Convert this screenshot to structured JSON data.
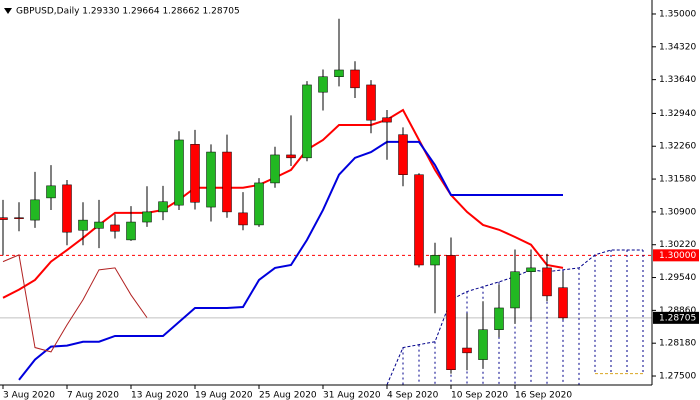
{
  "chart_data": {
    "type": "candlestick",
    "title": "GBPUSD,Daily  1.29330 1.29664 1.28662 1.28705",
    "categories": [
      "3 Aug 2020",
      null,
      null,
      null,
      "7 Aug 2020",
      null,
      null,
      null,
      "13 Aug 2020",
      null,
      null,
      null,
      "19 Aug 2020",
      null,
      null,
      null,
      "25 Aug 2020",
      null,
      null,
      null,
      "31 Aug 2020",
      null,
      null,
      null,
      "4 Sep 2020",
      null,
      null,
      null,
      "10 Sep 2020",
      null,
      null,
      null,
      "16 Sep 2020",
      null,
      null,
      null,
      null,
      null,
      null,
      null,
      null
    ],
    "candles": {
      "up_color": "#22b822",
      "down_color": "#ff0000",
      "open": [
        1.3078,
        1.3078,
        1.3073,
        1.3119,
        1.3146,
        1.3052,
        1.3056,
        1.3063,
        1.3032,
        1.3069,
        1.309,
        1.3104,
        1.323,
        1.31,
        1.3214,
        1.3088,
        1.3063,
        1.315,
        1.3208,
        1.3202,
        1.3338,
        1.337,
        1.3384,
        1.3353,
        1.3285,
        1.325,
        1.3167,
        1.298,
        1.3,
        1.2808,
        1.2784,
        1.2846,
        1.2891,
        1.2966,
        1.2974,
        1.2933
      ],
      "high": [
        1.3115,
        1.311,
        1.3173,
        1.3187,
        1.3156,
        1.311,
        1.3115,
        1.3085,
        1.3102,
        1.3143,
        1.3144,
        1.3257,
        1.326,
        1.323,
        1.325,
        1.3131,
        1.316,
        1.3225,
        1.329,
        1.3361,
        1.3385,
        1.349,
        1.3402,
        1.3363,
        1.3301,
        1.3265,
        1.317,
        1.3026,
        1.3037,
        1.288,
        1.2905,
        1.294,
        1.3012,
        1.3012,
        1.3003,
        1.29664
      ],
      "low": [
        1.3,
        1.305,
        1.3057,
        1.3094,
        1.3021,
        1.3021,
        1.3015,
        1.3035,
        1.303,
        1.3059,
        1.3073,
        1.3094,
        1.3095,
        1.307,
        1.3078,
        1.3052,
        1.3059,
        1.314,
        1.3185,
        1.3195,
        1.33,
        1.335,
        1.3326,
        1.3253,
        1.3198,
        1.3143,
        1.2975,
        1.288,
        1.2755,
        1.2762,
        1.2765,
        1.283,
        1.2858,
        1.2866,
        1.2905,
        1.28662
      ],
      "close": [
        1.3074,
        1.3076,
        1.3115,
        1.3144,
        1.3048,
        1.3073,
        1.3069,
        1.305,
        1.3069,
        1.309,
        1.3111,
        1.3239,
        1.311,
        1.3214,
        1.309,
        1.3063,
        1.315,
        1.3208,
        1.3202,
        1.3353,
        1.337,
        1.3384,
        1.3347,
        1.328,
        1.3276,
        1.3167,
        1.298,
        1.3,
        1.2763,
        1.2798,
        1.2846,
        1.2891,
        1.2966,
        1.2974,
        1.2916,
        1.28705
      ]
    },
    "series": [
      {
        "color": "#ff0000",
        "width": 2,
        "dash": false,
        "values": [
          1.2912,
          1.2929,
          1.2949,
          1.2987,
          1.3011,
          1.3036,
          1.3063,
          1.3088,
          1.3088,
          1.3088,
          1.3094,
          1.3115,
          1.314,
          1.314,
          1.314,
          1.314,
          1.3146,
          1.3161,
          1.3177,
          1.3219,
          1.3239,
          1.327,
          1.327,
          1.327,
          1.3281,
          1.3301,
          1.3239,
          1.3177,
          1.3125,
          1.309,
          1.3063,
          1.3053,
          1.3038,
          1.3022,
          1.298,
          1.2974,
          null,
          null,
          null,
          null,
          null
        ]
      },
      {
        "color": "#0000dd",
        "width": 2,
        "dash": false,
        "values": [
          null,
          1.2742,
          1.2784,
          1.2811,
          1.2813,
          1.2821,
          1.2821,
          1.2833,
          1.2833,
          1.2833,
          1.2833,
          1.2862,
          1.2891,
          1.2891,
          1.2891,
          1.2893,
          1.2949,
          1.2974,
          1.298,
          1.3032,
          1.3094,
          1.3167,
          1.3202,
          1.3214,
          1.3235,
          1.3235,
          1.3235,
          1.3187,
          1.3125,
          1.3125,
          1.3125,
          1.3125,
          1.3125,
          1.3125,
          1.3125,
          1.3125,
          null,
          null,
          null,
          null,
          null
        ]
      },
      {
        "color": "#b22222",
        "width": 1,
        "dash": false,
        "values": [
          1.2987,
          1.3001,
          1.2809,
          1.28,
          1.2856,
          1.2908,
          1.297,
          1.2974,
          1.2918,
          1.2871,
          null,
          null,
          null,
          null,
          null,
          null,
          null,
          null,
          null,
          null,
          null,
          null,
          null,
          null,
          null,
          null,
          null,
          null,
          null,
          null,
          null,
          null,
          null,
          null,
          null,
          null,
          null,
          null,
          null,
          null,
          null
        ]
      },
      {
        "color": "#00008b",
        "width": 1,
        "dash": true,
        "values": [
          null,
          null,
          null,
          null,
          null,
          null,
          null,
          null,
          null,
          null,
          null,
          null,
          null,
          null,
          null,
          null,
          null,
          null,
          null,
          null,
          null,
          null,
          null,
          null,
          1.2732,
          1.2809,
          1.2815,
          1.2821,
          1.2908,
          1.2925,
          1.2935,
          1.2945,
          1.2956,
          1.297,
          1.2966,
          1.297,
          1.2974,
          1.3001,
          1.3011,
          1.3011,
          1.3011
        ]
      },
      {
        "color": "#daa520",
        "width": 1,
        "dash": true,
        "values": [
          null,
          null,
          null,
          null,
          null,
          null,
          null,
          null,
          null,
          null,
          null,
          null,
          null,
          null,
          null,
          null,
          null,
          null,
          null,
          null,
          null,
          null,
          null,
          null,
          null,
          null,
          null,
          null,
          null,
          null,
          null,
          null,
          null,
          null,
          null,
          null,
          null,
          1.2755,
          1.2755,
          1.2755,
          1.2755
        ]
      }
    ],
    "levels": [
      {
        "value": 1.3,
        "label": "1.30000",
        "color": "#ff0000",
        "dash": true
      },
      {
        "value": 1.28705,
        "label": "1.28705",
        "color": "#000000",
        "dash": false
      }
    ],
    "ylim": [
      1.27314,
      1.35186
    ],
    "yticks": [
      {
        "value": 1.35,
        "label": "1.35000"
      },
      {
        "value": 1.3432,
        "label": "1.34320"
      },
      {
        "value": 1.3364,
        "label": "1.33640"
      },
      {
        "value": 1.3294,
        "label": "1.32940"
      },
      {
        "value": 1.3226,
        "label": "1.32260"
      },
      {
        "value": 1.3158,
        "label": "1.31580"
      },
      {
        "value": 1.309,
        "label": "1.30900"
      },
      {
        "value": 1.3022,
        "label": "1.30220"
      },
      {
        "value": 1.2954,
        "label": "1.29540"
      },
      {
        "value": 1.2886,
        "label": "1.28860"
      },
      {
        "value": 1.2818,
        "label": "1.28180"
      },
      {
        "value": 1.275,
        "label": "1.27500"
      }
    ]
  }
}
